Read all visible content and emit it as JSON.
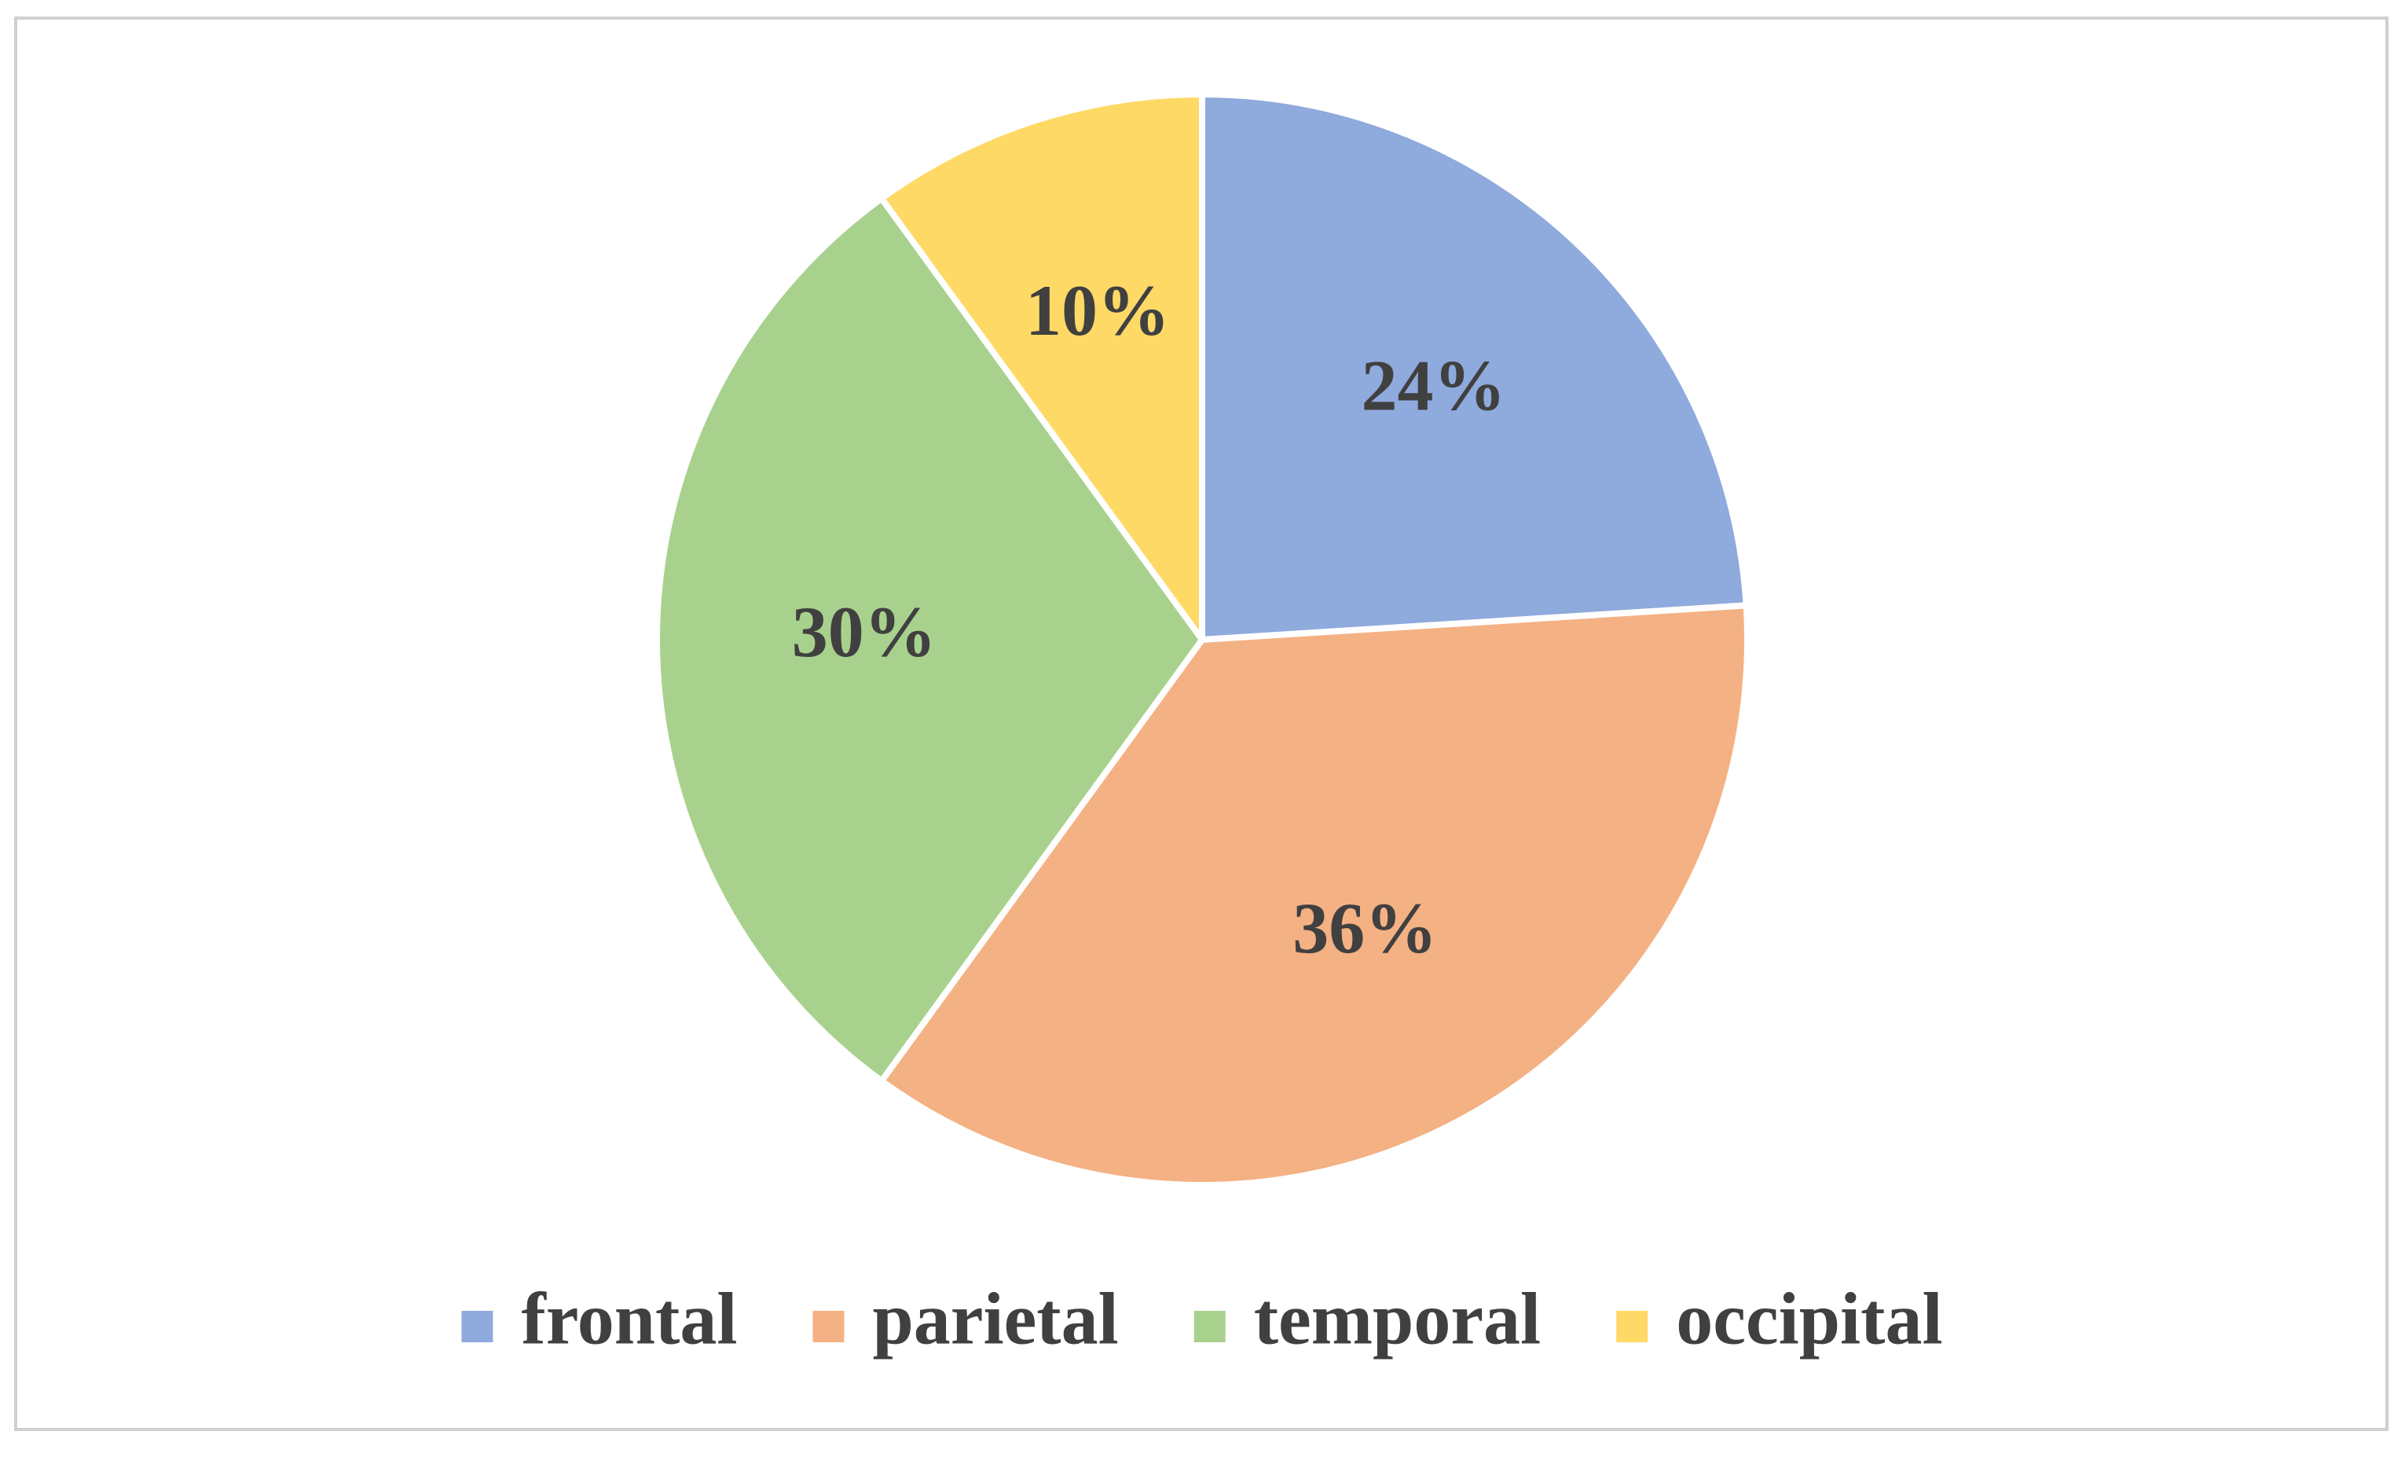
{
  "chart_data": {
    "type": "pie",
    "categories": [
      "frontal",
      "parietal",
      "temporal",
      "occipital"
    ],
    "values": [
      24,
      36,
      30,
      10
    ],
    "value_labels": [
      "24%",
      "36%",
      "30%",
      "10%"
    ],
    "colors": [
      "#8faadc",
      "#f4b183",
      "#a9d18e",
      "#ffd966"
    ],
    "legend": "bottom"
  }
}
